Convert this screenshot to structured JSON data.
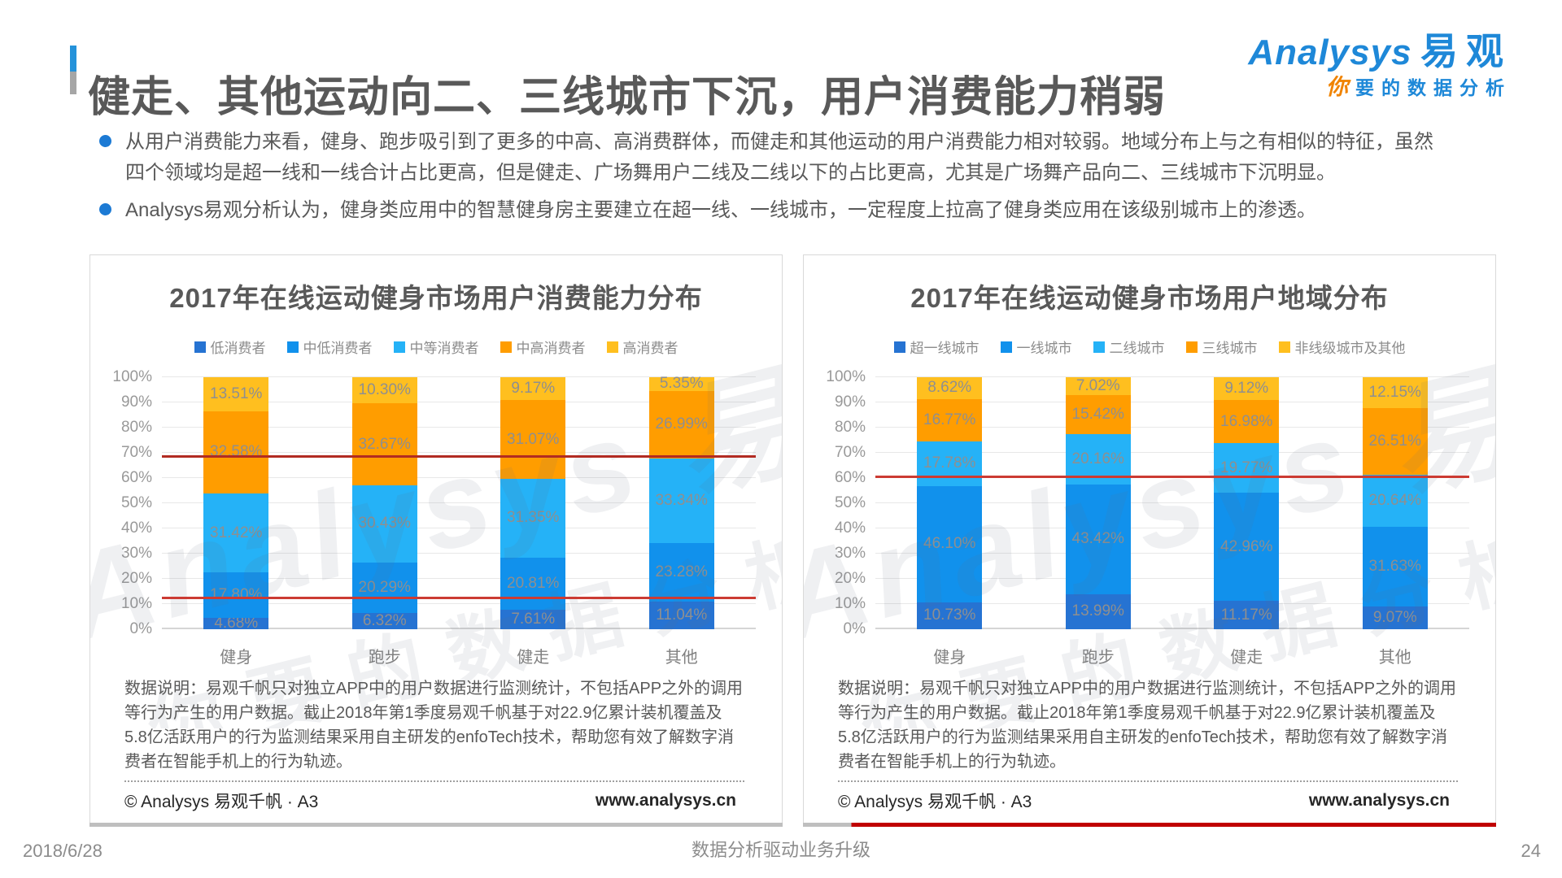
{
  "page": {
    "title": "健走、其他运动向二、三线城市下沉，用户消费能力稍弱",
    "bullets": [
      "从用户消费能力来看，健身、跑步吸引到了更多的中高、高消费群体，而健走和其他运动的用户消费能力相对较弱。地域分布上与之有相似的特征，虽然四个领域均是超一线和一线合计占比更高，但是健走、广场舞用户二线及二线以下的占比更高，尤其是广场舞产品向二、三线城市下沉明显。",
      "Analysys易观分析认为，健身类应用中的智慧健身房主要建立在超一线、一线城市，一定程度上拉高了健身类应用在该级别城市上的渗透。"
    ],
    "logo": {
      "brand_en": "Analysys",
      "brand_cn": "易观",
      "tagline_first": "你",
      "tagline_rest": "要的数据分析",
      "brand_color": "#1E88D8",
      "tagline_highlight_color": "#F08300"
    },
    "watermark": {
      "line1": "Analysys 易观",
      "line2": "你要的数据分析"
    },
    "footer": {
      "date": "2018/6/28",
      "slogan": "数据分析驱动业务升级",
      "page_number": "24"
    }
  },
  "chart_data": [
    {
      "type": "bar",
      "stacked": true,
      "title": "2017年在线运动健身市场用户消费能力分布",
      "categories": [
        "健身",
        "跑步",
        "健走",
        "其他"
      ],
      "series": [
        {
          "name": "低消费者",
          "color": "#2673D2",
          "values": [
            "4.68%",
            "6.32%",
            "7.61%",
            "11.04%"
          ]
        },
        {
          "name": "中低消费者",
          "color": "#1191EC",
          "values": [
            "17.80%",
            "20.29%",
            "20.81%",
            "23.28%"
          ]
        },
        {
          "name": "中等消费者",
          "color": "#25B2F7",
          "values": [
            "31.42%",
            "30.43%",
            "31.35%",
            "33.34%"
          ]
        },
        {
          "name": "中高消费者",
          "color": "#FF9D00",
          "values": [
            "32.58%",
            "32.67%",
            "31.07%",
            "26.99%"
          ]
        },
        {
          "name": "高消费者",
          "color": "#FFBF1F",
          "values": [
            "13.51%",
            "10.30%",
            "9.17%",
            "5.35%"
          ]
        }
      ],
      "ylim": [
        0,
        100
      ],
      "yticks": [
        "0%",
        "10%",
        "20%",
        "30%",
        "40%",
        "50%",
        "60%",
        "70%",
        "80%",
        "90%",
        "100%"
      ],
      "grid": true,
      "legend_position": "top",
      "ref_lines": [
        {
          "value": 68,
          "color": "#B22B22"
        },
        {
          "value": 12,
          "color": "#CC3B33"
        }
      ],
      "note": "数据说明：易观千帆只对独立APP中的用户数据进行监测统计，不包括APP之外的调用等行为产生的用户数据。截止2018年第1季度易观千帆基于对22.9亿累计装机覆盖及5.8亿活跃用户的行为监测结果采用自主研发的enfoTech技术，帮助您有效了解数字消费者在智能手机上的行为轨迹。",
      "copyright": "© Analysys 易观千帆 · A3",
      "website": "www.analysys.cn",
      "bottom_accent": "gray"
    },
    {
      "type": "bar",
      "stacked": true,
      "title": "2017年在线运动健身市场用户地域分布",
      "categories": [
        "健身",
        "跑步",
        "健走",
        "其他"
      ],
      "series": [
        {
          "name": "超一线城市",
          "color": "#2673D2",
          "values": [
            "10.73%",
            "13.99%",
            "11.17%",
            "9.07%"
          ]
        },
        {
          "name": "一线城市",
          "color": "#1191EC",
          "values": [
            "46.10%",
            "43.42%",
            "42.96%",
            "31.63%"
          ]
        },
        {
          "name": "二线城市",
          "color": "#25B2F7",
          "values": [
            "17.78%",
            "20.16%",
            "19.77%",
            "20.64%"
          ]
        },
        {
          "name": "三线城市",
          "color": "#FF9D00",
          "values": [
            "16.77%",
            "15.42%",
            "16.98%",
            "26.51%"
          ]
        },
        {
          "name": "非线级城市及其他",
          "color": "#FFBF1F",
          "values": [
            "8.62%",
            "7.02%",
            "9.12%",
            "12.15%"
          ]
        }
      ],
      "ylim": [
        0,
        100
      ],
      "yticks": [
        "0%",
        "10%",
        "20%",
        "30%",
        "40%",
        "50%",
        "60%",
        "70%",
        "80%",
        "90%",
        "100%"
      ],
      "grid": true,
      "legend_position": "top",
      "ref_lines": [
        {
          "value": 60,
          "color": "#CC3B33"
        }
      ],
      "note": "数据说明：易观千帆只对独立APP中的用户数据进行监测统计，不包括APP之外的调用等行为产生的用户数据。截止2018年第1季度易观千帆基于对22.9亿累计装机覆盖及5.8亿活跃用户的行为监测结果采用自主研发的enfoTech技术，帮助您有效了解数字消费者在智能手机上的行为轨迹。",
      "copyright": "© Analysys 易观千帆 · A3",
      "website": "www.analysys.cn",
      "bottom_accent": "red"
    }
  ]
}
